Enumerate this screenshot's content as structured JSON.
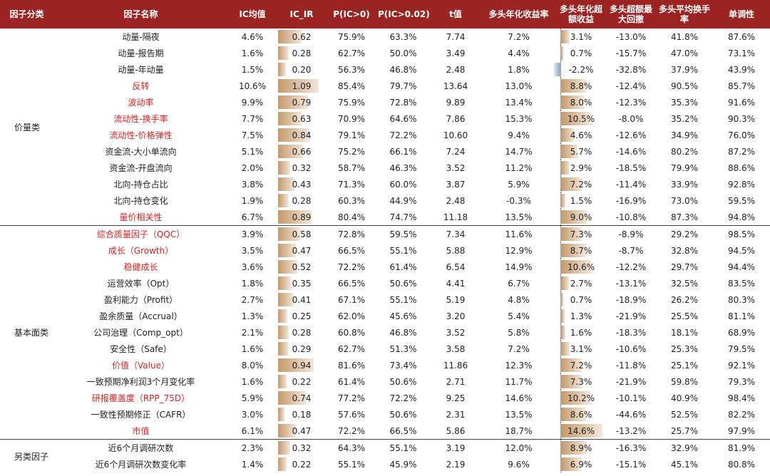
{
  "table": {
    "headers": [
      "因子分类",
      "因子名称",
      "IC均值",
      "IC_IR",
      "P(IC>0)",
      "P(IC>0.02)",
      "t值",
      "多头年化收益率",
      "多头年化超额收益",
      "多头超额最大回撤",
      "多头平均换手率",
      "单调性"
    ],
    "highlight_color": "#e02020",
    "groups": [
      {
        "name": "价量类",
        "rows": [
          {
            "name": "动量-隔夜",
            "highlight": false,
            "cells": [
              "4.6%",
              "0.62",
              "75.9%",
              "63.3%",
              "7.74",
              "7.2%",
              "3.1%",
              "-13.0%",
              "41.8%",
              "87.6%"
            ]
          },
          {
            "name": "动量-报告期",
            "highlight": false,
            "cells": [
              "1.6%",
              "0.28",
              "62.7%",
              "50.0%",
              "3.49",
              "4.4%",
              "0.7%",
              "-15.7%",
              "47.0%",
              "73.1%"
            ]
          },
          {
            "name": "动量-年动量",
            "highlight": false,
            "cells": [
              "1.5%",
              "0.20",
              "56.3%",
              "46.8%",
              "2.48",
              "1.8%",
              "-2.2%",
              "-32.8%",
              "37.9%",
              "43.9%"
            ]
          },
          {
            "name": "反转",
            "highlight": true,
            "cells": [
              "10.6%",
              "1.09",
              "85.4%",
              "79.7%",
              "13.64",
              "13.0%",
              "8.8%",
              "-12.4%",
              "90.5%",
              "85.7%"
            ]
          },
          {
            "name": "波动率",
            "highlight": true,
            "cells": [
              "9.9%",
              "0.79",
              "75.9%",
              "72.8%",
              "9.89",
              "13.4%",
              "8.0%",
              "-12.3%",
              "35.3%",
              "91.6%"
            ]
          },
          {
            "name": "流动性-换手率",
            "highlight": true,
            "cells": [
              "7.7%",
              "0.63",
              "70.9%",
              "64.6%",
              "7.86",
              "15.3%",
              "10.5%",
              "-8.0%",
              "35.2%",
              "90.3%"
            ]
          },
          {
            "name": "流动性-价格弹性",
            "highlight": true,
            "cells": [
              "7.5%",
              "0.84",
              "79.1%",
              "72.2%",
              "10.60",
              "9.4%",
              "4.6%",
              "-12.6%",
              "34.9%",
              "76.0%"
            ]
          },
          {
            "name": "资金流-大小单流向",
            "highlight": false,
            "cells": [
              "5.1%",
              "0.66",
              "75.2%",
              "66.1%",
              "7.24",
              "14.7%",
              "5.7%",
              "-14.6%",
              "80.2%",
              "87.2%"
            ]
          },
          {
            "name": "资金流-开盘流向",
            "highlight": false,
            "cells": [
              "2.0%",
              "0.32",
              "58.7%",
              "46.3%",
              "3.52",
              "11.2%",
              "2.9%",
              "-18.5%",
              "79.9%",
              "88.6%"
            ]
          },
          {
            "name": "北向-持仓占比",
            "highlight": false,
            "cells": [
              "3.8%",
              "0.43",
              "71.3%",
              "60.0%",
              "3.87",
              "5.9%",
              "7.2%",
              "-11.4%",
              "33.9%",
              "92.8%"
            ]
          },
          {
            "name": "北向-持仓变化",
            "highlight": false,
            "cells": [
              "1.9%",
              "0.28",
              "60.3%",
              "44.9%",
              "2.48",
              "-0.3%",
              "1.5%",
              "-16.9%",
              "73.0%",
              "59.5%"
            ]
          },
          {
            "name": "量价相关性",
            "highlight": true,
            "cells": [
              "6.7%",
              "0.89",
              "80.4%",
              "74.7%",
              "11.18",
              "13.5%",
              "9.0%",
              "-10.8%",
              "87.3%",
              "94.8%"
            ]
          }
        ]
      },
      {
        "name": "基本面类",
        "rows": [
          {
            "name": "综合质量因子（QQC）",
            "highlight": true,
            "cells": [
              "3.9%",
              "0.58",
              "72.8%",
              "59.5%",
              "7.34",
              "11.6%",
              "7.3%",
              "-8.9%",
              "29.2%",
              "98.5%"
            ]
          },
          {
            "name": "成长（Growth）",
            "highlight": true,
            "cells": [
              "3.5%",
              "0.47",
              "66.5%",
              "55.1%",
              "5.88",
              "12.9%",
              "8.7%",
              "-8.7%",
              "32.8%",
              "94.5%"
            ]
          },
          {
            "name": "稳健成长",
            "highlight": true,
            "cells": [
              "3.6%",
              "0.52",
              "72.2%",
              "61.4%",
              "6.54",
              "14.9%",
              "10.6%",
              "-12.2%",
              "29.7%",
              "94.4%"
            ]
          },
          {
            "name": "运营效率（Opt）",
            "highlight": false,
            "cells": [
              "1.8%",
              "0.35",
              "66.5%",
              "50.6%",
              "4.41",
              "6.7%",
              "2.7%",
              "-13.1%",
              "32.5%",
              "83.5%"
            ]
          },
          {
            "name": "盈利能力（Profit）",
            "highlight": false,
            "cells": [
              "2.7%",
              "0.41",
              "67.1%",
              "55.1%",
              "5.19",
              "4.8%",
              "0.7%",
              "-18.9%",
              "26.2%",
              "80.3%"
            ]
          },
          {
            "name": "盈余质量（Accrual）",
            "highlight": false,
            "cells": [
              "1.3%",
              "0.25",
              "62.0%",
              "45.6%",
              "3.20",
              "5.4%",
              "1.3%",
              "-21.9%",
              "25.5%",
              "81.1%"
            ]
          },
          {
            "name": "公司治理（Comp_opt）",
            "highlight": false,
            "cells": [
              "2.1%",
              "0.28",
              "60.8%",
              "46.8%",
              "3.52",
              "5.8%",
              "1.6%",
              "-18.3%",
              "18.1%",
              "68.9%"
            ]
          },
          {
            "name": "安全性（Safe）",
            "highlight": false,
            "cells": [
              "1.6%",
              "0.29",
              "62.7%",
              "51.3%",
              "3.58",
              "7.2%",
              "3.1%",
              "-10.6%",
              "25.3%",
              "79.5%"
            ]
          },
          {
            "name": "价值（Value）",
            "highlight": true,
            "cells": [
              "8.0%",
              "0.94",
              "81.6%",
              "73.4%",
              "11.86",
              "12.3%",
              "7.2%",
              "-11.8%",
              "25.1%",
              "92.1%"
            ]
          },
          {
            "name": "一致预期净利润3个月变化率",
            "highlight": false,
            "cells": [
              "1.6%",
              "0.22",
              "61.4%",
              "50.6%",
              "2.71",
              "11.7%",
              "7.3%",
              "-21.9%",
              "59.8%",
              "79.3%"
            ]
          },
          {
            "name": "研报覆盖度（RPP_75D）",
            "highlight": true,
            "cells": [
              "5.9%",
              "0.74",
              "77.2%",
              "72.2%",
              "9.25",
              "14.6%",
              "10.2%",
              "-10.1%",
              "40.9%",
              "98.4%"
            ]
          },
          {
            "name": "一致性预期修正（CAFR）",
            "highlight": false,
            "cells": [
              "3.0%",
              "0.18",
              "57.6%",
              "50.6%",
              "2.31",
              "13.5%",
              "8.6%",
              "-44.6%",
              "52.5%",
              "82.2%"
            ]
          },
          {
            "name": "市值",
            "highlight": true,
            "cells": [
              "6.1%",
              "0.47",
              "72.2%",
              "66.5%",
              "5.86",
              "18.7%",
              "14.6%",
              "-13.2%",
              "25.7%",
              "97.9%"
            ]
          }
        ]
      },
      {
        "name": "另类因子",
        "rows": [
          {
            "name": "近6个月调研次数",
            "highlight": false,
            "cells": [
              "2.3%",
              "0.32",
              "64.3%",
              "55.1%",
              "3.19",
              "12.0%",
              "8.9%",
              "-16.3%",
              "32.9%",
              "81.9%"
            ]
          },
          {
            "name": "近6个月调研次数变化率",
            "highlight": false,
            "cells": [
              "1.4%",
              "0.22",
              "55.1%",
              "45.9%",
              "2.19",
              "9.6%",
              "6.9%",
              "-15.1%",
              "45.1%",
              "80.8%"
            ]
          }
        ]
      }
    ]
  }
}
